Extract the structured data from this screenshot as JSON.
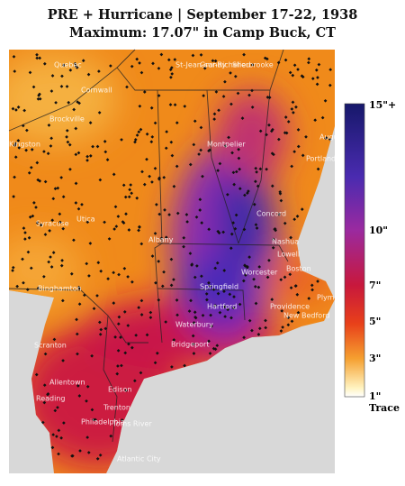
{
  "header": {
    "title": "PRE + Hurricane | September 17-22, 1938",
    "subtitle": "Maximum: 17.07\" in Camp Buck, CT"
  },
  "map": {
    "labels": [
      "Quebec",
      "St-Jean-sur-Richelieu",
      "Granby",
      "Sherbrooke",
      "Cornwall",
      "Brockville",
      "Montpelier",
      "Augusta",
      "Portland",
      "Kingston",
      "Syracuse",
      "Utica",
      "Concord",
      "Nashua",
      "Lowell",
      "Albany",
      "Worcester",
      "Boston",
      "Binghamton",
      "Springfield",
      "Hartford",
      "Providence",
      "Plymouth",
      "New Bedford",
      "Scranton",
      "Waterbury",
      "Bridgeport",
      "Allentown",
      "Edison",
      "Reading",
      "Trenton",
      "Toms River",
      "Philadelphia",
      "Atlantic City"
    ]
  },
  "legend": {
    "labels": [
      "15\"+",
      "10\"",
      "7\"",
      "5\"",
      "3\"",
      "1\"",
      "Trace"
    ]
  }
}
